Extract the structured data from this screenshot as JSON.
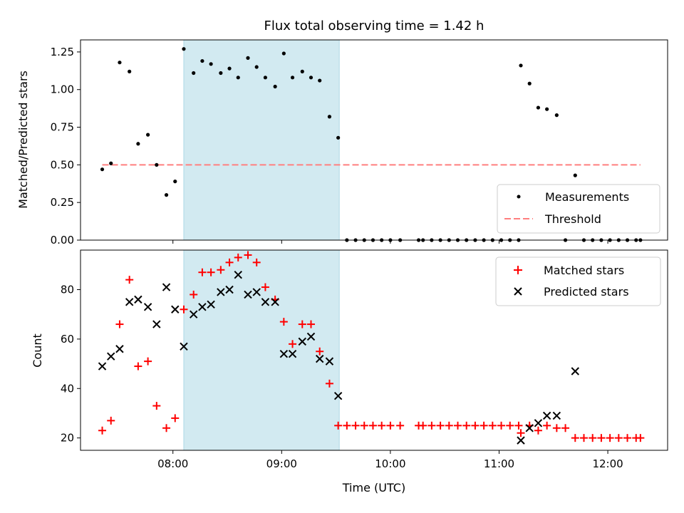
{
  "title": "Flux total observing time = 1.42 h",
  "colors": {
    "span": "#add8e6",
    "threshold": "#ff7f7f",
    "matched": "#ff0000",
    "predicted": "#000000",
    "measurement": "#000000"
  },
  "chart_data": [
    {
      "type": "scatter",
      "ylabel": "Matched/Predicted stars",
      "xlim": [
        7.15,
        12.55
      ],
      "ylim": [
        0,
        1.33
      ],
      "yticks": [
        0.0,
        0.25,
        0.5,
        0.75,
        1.0,
        1.25
      ],
      "ytick_labels": [
        "0.00",
        "0.25",
        "0.50",
        "0.75",
        "1.00",
        "1.25"
      ],
      "shaded_span": [
        8.1,
        9.53
      ],
      "legend_position": "lower-right",
      "legend": {
        "measurements": "Measurements",
        "threshold": "Threshold"
      },
      "threshold": {
        "value": 0.5,
        "x_range": [
          7.35,
          12.3
        ]
      },
      "series": [
        {
          "name": "Measurements",
          "points": [
            [
              7.35,
              0.47
            ],
            [
              7.43,
              0.51
            ],
            [
              7.51,
              1.18
            ],
            [
              7.6,
              1.12
            ],
            [
              7.68,
              0.64
            ],
            [
              7.77,
              0.7
            ],
            [
              7.85,
              0.5
            ],
            [
              7.94,
              0.3
            ],
            [
              8.02,
              0.39
            ],
            [
              8.1,
              1.27
            ],
            [
              8.19,
              1.11
            ],
            [
              8.27,
              1.19
            ],
            [
              8.35,
              1.17
            ],
            [
              8.44,
              1.11
            ],
            [
              8.52,
              1.14
            ],
            [
              8.6,
              1.08
            ],
            [
              8.69,
              1.21
            ],
            [
              8.77,
              1.15
            ],
            [
              8.85,
              1.08
            ],
            [
              8.94,
              1.02
            ],
            [
              9.02,
              1.24
            ],
            [
              9.1,
              1.08
            ],
            [
              9.19,
              1.12
            ],
            [
              9.27,
              1.08
            ],
            [
              9.35,
              1.06
            ],
            [
              9.44,
              0.82
            ],
            [
              9.52,
              0.68
            ],
            [
              9.6,
              0
            ],
            [
              9.68,
              0
            ],
            [
              9.76,
              0
            ],
            [
              9.84,
              0
            ],
            [
              9.92,
              0
            ],
            [
              10.0,
              0
            ],
            [
              10.09,
              0
            ],
            [
              10.26,
              0
            ],
            [
              10.3,
              0
            ],
            [
              10.38,
              0
            ],
            [
              10.46,
              0
            ],
            [
              10.54,
              0
            ],
            [
              10.62,
              0
            ],
            [
              10.7,
              0
            ],
            [
              10.78,
              0
            ],
            [
              10.86,
              0
            ],
            [
              10.94,
              0
            ],
            [
              11.02,
              0
            ],
            [
              11.1,
              0
            ],
            [
              11.18,
              0
            ],
            [
              11.2,
              1.16
            ],
            [
              11.28,
              1.04
            ],
            [
              11.36,
              0.88
            ],
            [
              11.44,
              0.87
            ],
            [
              11.53,
              0.83
            ],
            [
              11.61,
              0
            ],
            [
              11.7,
              0.43
            ],
            [
              11.78,
              0
            ],
            [
              11.86,
              0
            ],
            [
              11.94,
              0
            ],
            [
              12.02,
              0
            ],
            [
              12.1,
              0
            ],
            [
              12.18,
              0
            ],
            [
              12.26,
              0
            ],
            [
              12.3,
              0
            ]
          ]
        }
      ]
    },
    {
      "type": "scatter",
      "xlabel": "Time (UTC)",
      "ylabel": "Count",
      "xlim": [
        7.15,
        12.55
      ],
      "ylim": [
        15,
        96
      ],
      "yticks": [
        20,
        40,
        60,
        80
      ],
      "xticks": [
        8,
        9,
        10,
        11,
        12
      ],
      "xtick_labels": [
        "08:00",
        "09:00",
        "10:00",
        "11:00",
        "12:00"
      ],
      "shaded_span": [
        8.1,
        9.53
      ],
      "legend_position": "upper-right",
      "series": [
        {
          "name": "Matched stars",
          "points": [
            [
              7.35,
              23
            ],
            [
              7.43,
              27
            ],
            [
              7.51,
              66
            ],
            [
              7.6,
              84
            ],
            [
              7.68,
              49
            ],
            [
              7.77,
              51
            ],
            [
              7.85,
              33
            ],
            [
              7.94,
              24
            ],
            [
              8.02,
              28
            ],
            [
              8.1,
              72
            ],
            [
              8.19,
              78
            ],
            [
              8.27,
              87
            ],
            [
              8.35,
              87
            ],
            [
              8.44,
              88
            ],
            [
              8.52,
              91
            ],
            [
              8.6,
              93
            ],
            [
              8.69,
              94
            ],
            [
              8.77,
              91
            ],
            [
              8.85,
              81
            ],
            [
              8.94,
              76
            ],
            [
              9.02,
              67
            ],
            [
              9.1,
              58
            ],
            [
              9.19,
              66
            ],
            [
              9.27,
              66
            ],
            [
              9.35,
              55
            ],
            [
              9.44,
              42
            ],
            [
              9.52,
              25
            ],
            [
              9.6,
              25
            ],
            [
              9.68,
              25
            ],
            [
              9.76,
              25
            ],
            [
              9.84,
              25
            ],
            [
              9.92,
              25
            ],
            [
              10.0,
              25
            ],
            [
              10.09,
              25
            ],
            [
              10.26,
              25
            ],
            [
              10.3,
              25
            ],
            [
              10.38,
              25
            ],
            [
              10.46,
              25
            ],
            [
              10.54,
              25
            ],
            [
              10.62,
              25
            ],
            [
              10.7,
              25
            ],
            [
              10.78,
              25
            ],
            [
              10.86,
              25
            ],
            [
              10.94,
              25
            ],
            [
              11.02,
              25
            ],
            [
              11.1,
              25
            ],
            [
              11.18,
              25
            ],
            [
              11.2,
              22
            ],
            [
              11.28,
              25
            ],
            [
              11.36,
              23
            ],
            [
              11.44,
              25
            ],
            [
              11.53,
              24
            ],
            [
              11.61,
              24
            ],
            [
              11.7,
              20
            ],
            [
              11.78,
              20
            ],
            [
              11.86,
              20
            ],
            [
              11.94,
              20
            ],
            [
              12.02,
              20
            ],
            [
              12.1,
              20
            ],
            [
              12.18,
              20
            ],
            [
              12.26,
              20
            ],
            [
              12.3,
              20
            ]
          ]
        },
        {
          "name": "Predicted stars",
          "points": [
            [
              7.35,
              49
            ],
            [
              7.43,
              53
            ],
            [
              7.51,
              56
            ],
            [
              7.6,
              75
            ],
            [
              7.68,
              76
            ],
            [
              7.77,
              73
            ],
            [
              7.85,
              66
            ],
            [
              7.94,
              81
            ],
            [
              8.02,
              72
            ],
            [
              8.1,
              57
            ],
            [
              8.19,
              70
            ],
            [
              8.27,
              73
            ],
            [
              8.35,
              74
            ],
            [
              8.44,
              79
            ],
            [
              8.52,
              80
            ],
            [
              8.6,
              86
            ],
            [
              8.69,
              78
            ],
            [
              8.77,
              79
            ],
            [
              8.85,
              75
            ],
            [
              8.94,
              75
            ],
            [
              9.02,
              54
            ],
            [
              9.1,
              54
            ],
            [
              9.19,
              59
            ],
            [
              9.27,
              61
            ],
            [
              9.35,
              52
            ],
            [
              9.44,
              51
            ],
            [
              9.52,
              37
            ],
            [
              11.2,
              19
            ],
            [
              11.28,
              24
            ],
            [
              11.36,
              26
            ],
            [
              11.44,
              29
            ],
            [
              11.53,
              29
            ],
            [
              11.7,
              47
            ]
          ]
        }
      ]
    }
  ]
}
